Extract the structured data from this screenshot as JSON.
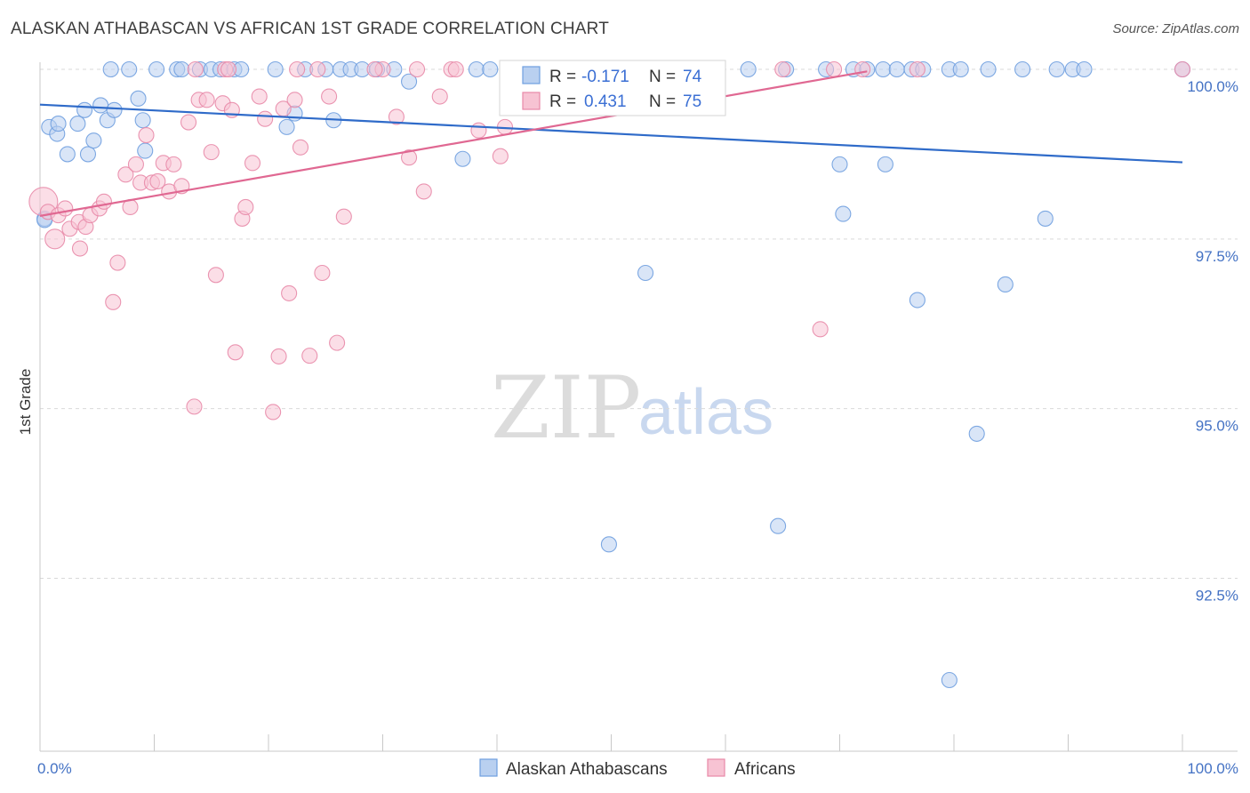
{
  "title": "ALASKAN ATHABASCAN VS AFRICAN 1ST GRADE CORRELATION CHART",
  "source": "Source: ZipAtlas.com",
  "watermark": {
    "zip": "ZIP",
    "atlas": "atlas"
  },
  "colors": {
    "blue": "#6f9fdf",
    "blue_fill": "#b9d0f0",
    "blue_line": "#2f6bc9",
    "pink": "#e889a8",
    "pink_fill": "#f7c3d3",
    "pink_line": "#e06892",
    "grid": "#d9d9d9",
    "tick_text": "#4472c4"
  },
  "legend_box": {
    "r_label": "R =",
    "n_label": "N =",
    "rows": [
      {
        "r": "-0.171",
        "n": "74"
      },
      {
        "r": "0.431",
        "n": "75"
      }
    ]
  },
  "chart_data": {
    "type": "scatter",
    "title": "ALASKAN ATHABASCAN VS AFRICAN 1ST GRADE CORRELATION CHART",
    "xlabel": "",
    "ylabel": "1st Grade",
    "xlim": [
      0,
      100
    ],
    "ylim": [
      90.5,
      100.5
    ],
    "x_tick_labels": [
      "0.0%",
      "100.0%"
    ],
    "y_ticks": [
      92.5,
      95.0,
      97.5,
      100.0
    ],
    "y_tick_labels": [
      "92.5%",
      "95.0%",
      "97.5%",
      "100.0%"
    ],
    "grid": "horizontal dashed",
    "legend_placement": "bottom-center",
    "series": [
      {
        "name": "Alaskan Athabascans",
        "color": "blue",
        "R": -0.171,
        "N": 74,
        "trend": [
          [
            0,
            99.48
          ],
          [
            100,
            98.63
          ]
        ],
        "points": [
          [
            0.4,
            97.8
          ],
          [
            0.8,
            99.15
          ],
          [
            1.5,
            99.05
          ],
          [
            1.6,
            99.2
          ],
          [
            2.4,
            98.75
          ],
          [
            3.3,
            99.2
          ],
          [
            3.9,
            99.4
          ],
          [
            4.2,
            98.75
          ],
          [
            4.7,
            98.95
          ],
          [
            5.3,
            99.47
          ],
          [
            5.9,
            99.25
          ],
          [
            6.5,
            99.4
          ],
          [
            8.6,
            99.57
          ],
          [
            9.0,
            99.25
          ],
          [
            9.2,
            98.8
          ],
          [
            6.2,
            100
          ],
          [
            7.8,
            100
          ],
          [
            10.2,
            100
          ],
          [
            12.0,
            100
          ],
          [
            12.4,
            100
          ],
          [
            14.0,
            100
          ],
          [
            15.0,
            100
          ],
          [
            15.8,
            100
          ],
          [
            17.0,
            100
          ],
          [
            17.6,
            100
          ],
          [
            20.6,
            100
          ],
          [
            23.2,
            100
          ],
          [
            25.0,
            100
          ],
          [
            26.3,
            100
          ],
          [
            27.2,
            100
          ],
          [
            28.2,
            100
          ],
          [
            29.5,
            100
          ],
          [
            31.0,
            100
          ],
          [
            38.2,
            100
          ],
          [
            39.4,
            100
          ],
          [
            44.6,
            100
          ],
          [
            48.0,
            100
          ],
          [
            50.5,
            100
          ],
          [
            53.5,
            100
          ],
          [
            56.0,
            100
          ],
          [
            62.0,
            100
          ],
          [
            65.3,
            100
          ],
          [
            68.8,
            100
          ],
          [
            73.8,
            100
          ],
          [
            75.0,
            100
          ],
          [
            76.3,
            100
          ],
          [
            77.3,
            100
          ],
          [
            79.6,
            100
          ],
          [
            80.6,
            100
          ],
          [
            83.0,
            100
          ],
          [
            86.0,
            100
          ],
          [
            89.0,
            100
          ],
          [
            90.4,
            100
          ],
          [
            91.4,
            100
          ],
          [
            100,
            100
          ],
          [
            21.6,
            99.15
          ],
          [
            22.3,
            99.35
          ],
          [
            25.7,
            99.25
          ],
          [
            32.3,
            99.82
          ],
          [
            37.0,
            98.68
          ],
          [
            70.0,
            98.6
          ],
          [
            74.0,
            98.6
          ],
          [
            70.3,
            97.87
          ],
          [
            76.8,
            96.6
          ],
          [
            88.0,
            97.8
          ],
          [
            53.0,
            97.0
          ],
          [
            84.5,
            96.83
          ],
          [
            82.0,
            94.63
          ],
          [
            64.6,
            93.27
          ],
          [
            49.8,
            93.0
          ],
          [
            79.6,
            91.0
          ],
          [
            0.4,
            97.78
          ],
          [
            71.2,
            100
          ],
          [
            72.4,
            100
          ]
        ]
      },
      {
        "name": "Africans",
        "color": "pink",
        "R": 0.431,
        "N": 75,
        "trend": [
          [
            0,
            97.84
          ],
          [
            72.4,
            99.97
          ]
        ],
        "points": [
          [
            0.3,
            98.05
          ],
          [
            0.7,
            97.9
          ],
          [
            1.3,
            97.5
          ],
          [
            1.6,
            97.85
          ],
          [
            2.2,
            97.95
          ],
          [
            2.6,
            97.65
          ],
          [
            3.4,
            97.75
          ],
          [
            3.5,
            97.36
          ],
          [
            4.0,
            97.68
          ],
          [
            4.4,
            97.85
          ],
          [
            5.2,
            97.95
          ],
          [
            5.6,
            98.05
          ],
          [
            6.8,
            97.15
          ],
          [
            6.4,
            96.57
          ],
          [
            7.5,
            98.45
          ],
          [
            7.9,
            97.97
          ],
          [
            8.4,
            98.6
          ],
          [
            8.8,
            98.33
          ],
          [
            9.3,
            99.03
          ],
          [
            9.8,
            98.33
          ],
          [
            10.3,
            98.35
          ],
          [
            10.8,
            98.62
          ],
          [
            11.3,
            98.2
          ],
          [
            11.7,
            98.6
          ],
          [
            12.4,
            98.28
          ],
          [
            13.0,
            99.22
          ],
          [
            13.5,
            95.03
          ],
          [
            13.9,
            99.55
          ],
          [
            14.6,
            99.55
          ],
          [
            15.0,
            98.78
          ],
          [
            15.4,
            96.97
          ],
          [
            16.0,
            99.5
          ],
          [
            16.8,
            99.4
          ],
          [
            17.1,
            95.83
          ],
          [
            17.7,
            97.8
          ],
          [
            18.0,
            97.97
          ],
          [
            18.6,
            98.62
          ],
          [
            19.2,
            99.6
          ],
          [
            19.7,
            99.27
          ],
          [
            20.4,
            94.95
          ],
          [
            20.9,
            95.77
          ],
          [
            21.3,
            99.42
          ],
          [
            21.8,
            96.7
          ],
          [
            22.3,
            99.55
          ],
          [
            22.8,
            98.85
          ],
          [
            23.6,
            95.78
          ],
          [
            24.7,
            97.0
          ],
          [
            25.3,
            99.6
          ],
          [
            26.0,
            95.97
          ],
          [
            26.6,
            97.83
          ],
          [
            30.0,
            100
          ],
          [
            31.2,
            99.3
          ],
          [
            32.3,
            98.7
          ],
          [
            33.6,
            98.2
          ],
          [
            35.0,
            99.6
          ],
          [
            36.0,
            100
          ],
          [
            38.4,
            99.1
          ],
          [
            40.3,
            98.72
          ],
          [
            40.7,
            99.15
          ],
          [
            41.5,
            100
          ],
          [
            13.6,
            100
          ],
          [
            16.2,
            100
          ],
          [
            16.5,
            100
          ],
          [
            22.5,
            100
          ],
          [
            24.3,
            100
          ],
          [
            29.3,
            100
          ],
          [
            33.0,
            100
          ],
          [
            36.4,
            100
          ],
          [
            65.0,
            100
          ],
          [
            69.5,
            100
          ],
          [
            72.0,
            100
          ],
          [
            76.8,
            100
          ],
          [
            100,
            100
          ],
          [
            68.3,
            96.17
          ],
          [
            57.0,
            100
          ]
        ]
      }
    ]
  }
}
